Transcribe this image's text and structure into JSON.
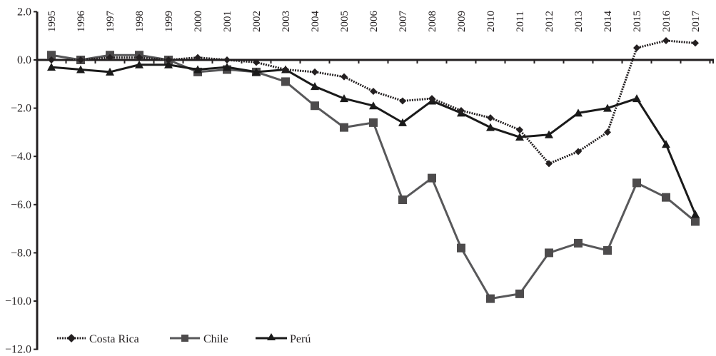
{
  "chart_data": {
    "type": "line",
    "title": "",
    "xlabel": "",
    "ylabel": "",
    "ylim": [
      -12.0,
      2.0
    ],
    "yticks": [
      "2.0",
      "0.0",
      "−2.0",
      "−4.0",
      "−6.0",
      "−8.0",
      "−10.0",
      "−12.0"
    ],
    "ytick_values": [
      2,
      0,
      -2,
      -4,
      -6,
      -8,
      -10,
      -12
    ],
    "grid": false,
    "legend_position": "bottom-left",
    "x_tick_position": "top, rotated vertical",
    "categories": [
      "1995",
      "1996",
      "1997",
      "1998",
      "1999",
      "2000",
      "2001",
      "2002",
      "2003",
      "2004",
      "2005",
      "2006",
      "2007",
      "2008",
      "2009",
      "2010",
      "2011",
      "2012",
      "2013",
      "2014",
      "2015",
      "2016",
      "2017"
    ],
    "series": [
      {
        "name": "Costa Rica",
        "marker": "diamond",
        "line_style": "dotted",
        "color": "#231f20",
        "values": [
          0.0,
          0.0,
          0.1,
          0.1,
          0.0,
          0.1,
          0.0,
          -0.1,
          -0.4,
          -0.5,
          -0.7,
          -1.3,
          -1.7,
          -1.6,
          -2.1,
          -2.4,
          -2.9,
          -4.3,
          -3.8,
          -3.0,
          0.5,
          0.8,
          0.7
        ]
      },
      {
        "name": "Chile",
        "marker": "square",
        "line_style": "solid",
        "color": "#58585a",
        "values": [
          0.2,
          0.0,
          0.2,
          0.2,
          0.0,
          -0.5,
          -0.4,
          -0.5,
          -0.9,
          -1.9,
          -2.8,
          -2.6,
          -5.8,
          -4.9,
          -7.8,
          -9.9,
          -9.7,
          -8.0,
          -7.6,
          -7.9,
          -5.1,
          -5.7,
          -6.7
        ]
      },
      {
        "name": "Perú",
        "marker": "triangle",
        "line_style": "solid",
        "color": "#1a1a1a",
        "values": [
          -0.3,
          -0.4,
          -0.5,
          -0.2,
          -0.2,
          -0.4,
          -0.3,
          -0.5,
          -0.4,
          -1.1,
          -1.6,
          -1.9,
          -2.6,
          -1.7,
          -2.2,
          -2.8,
          -3.2,
          -3.1,
          -2.2,
          -2.0,
          -1.6,
          -3.5,
          -6.4
        ]
      }
    ]
  },
  "legend": {
    "items": [
      {
        "label": "Costa Rica"
      },
      {
        "label": "Chile"
      },
      {
        "label": "Perú"
      }
    ]
  }
}
